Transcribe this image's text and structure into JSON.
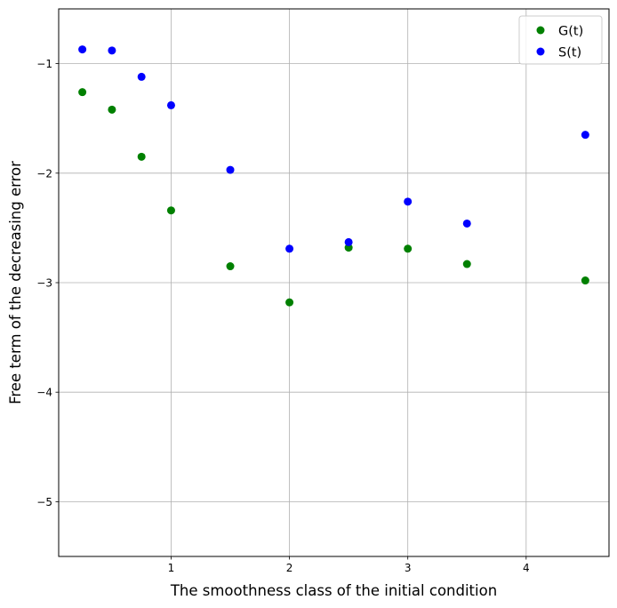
{
  "chart_data": {
    "type": "scatter",
    "title": "",
    "xlabel": "The smoothness class of the initial condition",
    "ylabel": "Free term of the decreasing error",
    "xlim": [
      0.05,
      4.7
    ],
    "ylim": [
      -5.5,
      -0.5
    ],
    "xticks": [
      1,
      2,
      3,
      4
    ],
    "yticks": [
      -5,
      -4,
      -3,
      -2,
      -1
    ],
    "grid": true,
    "legend_position": "top-right",
    "series": [
      {
        "name": "G(t)",
        "color": "#008000",
        "points": [
          {
            "x": 0.25,
            "y": -1.26
          },
          {
            "x": 0.5,
            "y": -1.42
          },
          {
            "x": 0.75,
            "y": -1.85
          },
          {
            "x": 1.0,
            "y": -2.34
          },
          {
            "x": 1.5,
            "y": -2.85
          },
          {
            "x": 2.0,
            "y": -3.18
          },
          {
            "x": 2.5,
            "y": -2.68
          },
          {
            "x": 3.0,
            "y": -2.69
          },
          {
            "x": 3.5,
            "y": -2.83
          },
          {
            "x": 4.5,
            "y": -2.98
          }
        ]
      },
      {
        "name": "S(t)",
        "color": "#0000ff",
        "points": [
          {
            "x": 0.25,
            "y": -0.87
          },
          {
            "x": 0.5,
            "y": -0.88
          },
          {
            "x": 0.75,
            "y": -1.12
          },
          {
            "x": 1.0,
            "y": -1.38
          },
          {
            "x": 1.5,
            "y": -1.97
          },
          {
            "x": 2.0,
            "y": -2.69
          },
          {
            "x": 2.5,
            "y": -2.63
          },
          {
            "x": 3.0,
            "y": -2.26
          },
          {
            "x": 3.5,
            "y": -2.46
          },
          {
            "x": 4.5,
            "y": -1.65
          }
        ]
      }
    ]
  }
}
